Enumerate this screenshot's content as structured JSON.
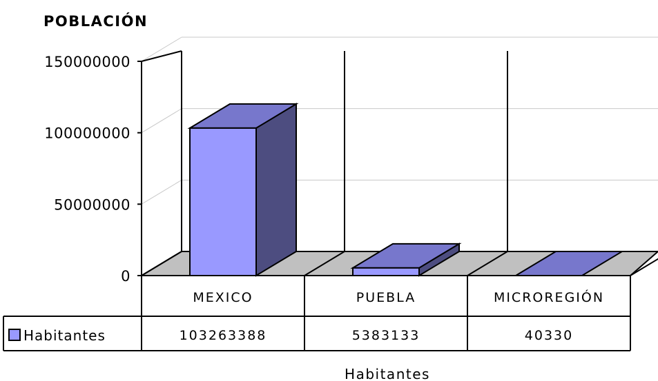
{
  "chart_data": {
    "type": "bar",
    "title": "POBLACIÓN",
    "xlabel": "Habitantes",
    "ylabel": "",
    "categories": [
      "MEXICO",
      "PUEBLA",
      "MICROREGIÓN"
    ],
    "series": [
      {
        "name": "Habitantes",
        "values": [
          103263388,
          5383133,
          40330
        ]
      }
    ],
    "ylim": [
      0,
      150000000
    ],
    "yticks": [
      0,
      50000000,
      100000000,
      150000000
    ],
    "ytick_labels": [
      "0",
      "50000000",
      "100000000",
      "150000000"
    ],
    "data_table": {
      "series_label": "Habitantes",
      "cells": [
        "103263388",
        "5383133",
        "40330"
      ]
    },
    "grid": true,
    "style": "3d-column with data table",
    "colors": {
      "bar_front": "#9999ff",
      "bar_top": "#7777cc",
      "bar_side": "#4d4d80",
      "floor": "#c0c0c0"
    }
  }
}
